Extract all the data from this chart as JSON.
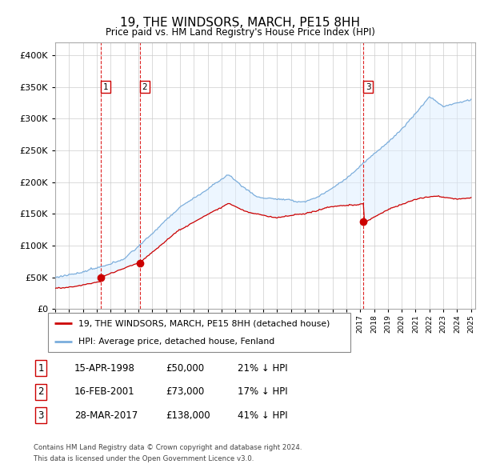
{
  "title": "19, THE WINDSORS, MARCH, PE15 8HH",
  "subtitle": "Price paid vs. HM Land Registry's House Price Index (HPI)",
  "ylim": [
    0,
    420000
  ],
  "yticks": [
    0,
    50000,
    100000,
    150000,
    200000,
    250000,
    300000,
    350000,
    400000
  ],
  "x_start_year": 1995,
  "x_end_year": 2025,
  "sale_year_nums": [
    1998.29,
    2001.12,
    2017.24
  ],
  "sale_prices": [
    50000,
    73000,
    138000
  ],
  "sale_labels": [
    "1",
    "2",
    "3"
  ],
  "legend_red": "19, THE WINDSORS, MARCH, PE15 8HH (detached house)",
  "legend_blue": "HPI: Average price, detached house, Fenland",
  "table_rows": [
    [
      "1",
      "15-APR-1998",
      "£50,000",
      "21% ↓ HPI"
    ],
    [
      "2",
      "16-FEB-2001",
      "£73,000",
      "17% ↓ HPI"
    ],
    [
      "3",
      "28-MAR-2017",
      "£138,000",
      "41% ↓ HPI"
    ]
  ],
  "footnote1": "Contains HM Land Registry data © Crown copyright and database right 2024.",
  "footnote2": "This data is licensed under the Open Government Licence v3.0.",
  "red_color": "#cc0000",
  "blue_color": "#7aaddc",
  "shade_blue": "#ddeeff",
  "shade_pink": "#ffcccc",
  "grid_color": "#cccccc"
}
